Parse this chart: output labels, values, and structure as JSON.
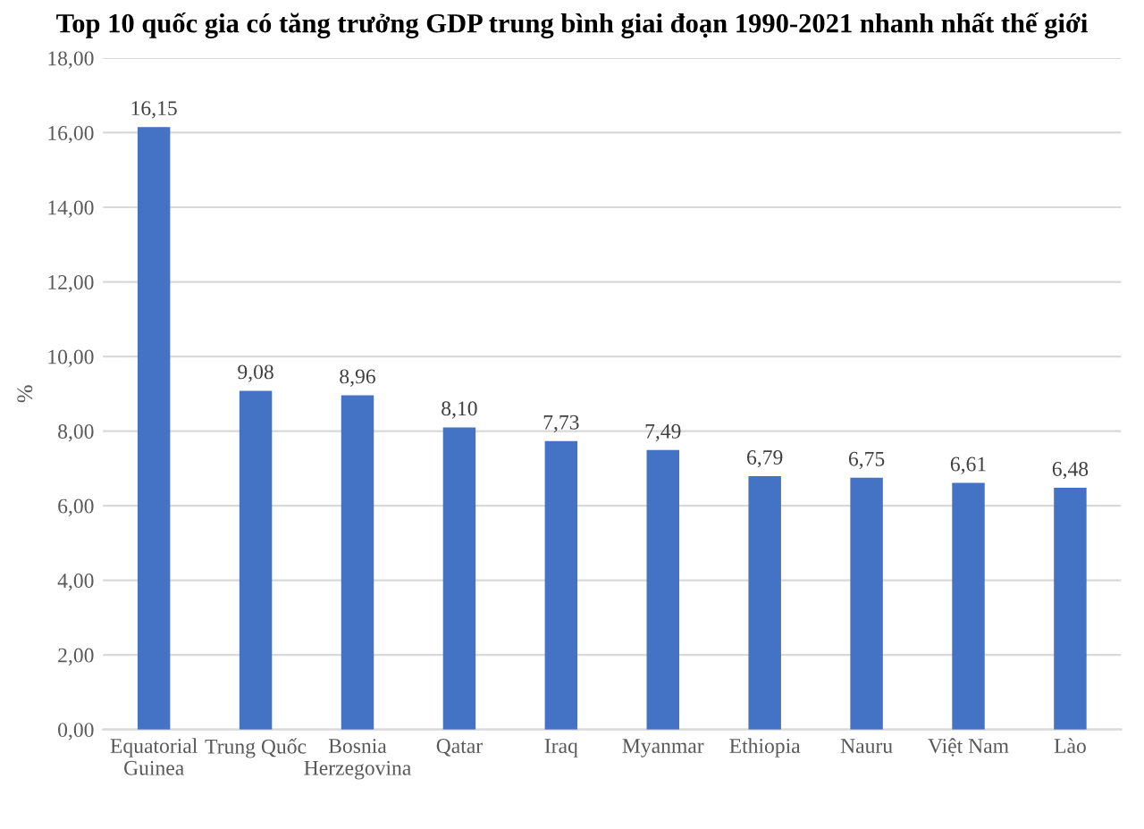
{
  "chart_data": {
    "type": "bar",
    "title": "Top 10 quốc gia có tăng trưởng GDP trung bình giai đoạn 1990-2021 nhanh nhất thế giới",
    "ylabel": "%",
    "categories": [
      "Equatorial\nGuinea",
      "Trung Quốc",
      "Bosnia\nHerzegovina",
      "Qatar",
      "Iraq",
      "Myanmar",
      "Ethiopia",
      "Nauru",
      "Việt Nam",
      "Lào"
    ],
    "values": [
      16.15,
      9.08,
      8.96,
      8.1,
      7.73,
      7.49,
      6.79,
      6.75,
      6.61,
      6.48
    ],
    "value_labels": [
      "16,15",
      "9,08",
      "8,96",
      "8,10",
      "7,73",
      "7,49",
      "6,79",
      "6,75",
      "6,61",
      "6,48"
    ],
    "color": "#4472c4",
    "ylim": [
      0,
      18
    ],
    "yticks": [
      {
        "value": 0,
        "label": "0,00"
      },
      {
        "value": 2,
        "label": "2,00"
      },
      {
        "value": 4,
        "label": "4,00"
      },
      {
        "value": 6,
        "label": "6,00"
      },
      {
        "value": 8,
        "label": "8,00"
      },
      {
        "value": 10,
        "label": "10,00"
      },
      {
        "value": 12,
        "label": "12,00"
      },
      {
        "value": 14,
        "label": "14,00"
      },
      {
        "value": 16,
        "label": "16,00"
      },
      {
        "value": 18,
        "label": "18,00"
      }
    ],
    "grid": "y",
    "legend": false
  }
}
